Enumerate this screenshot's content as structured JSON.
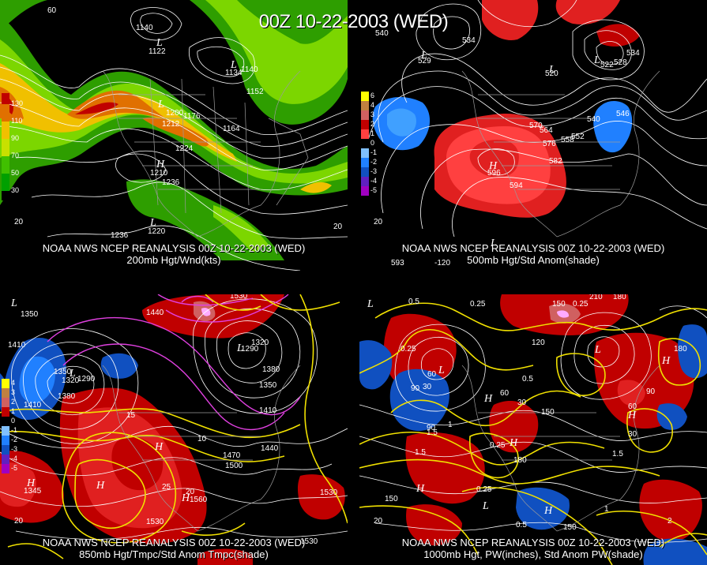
{
  "title": "00Z 10-22-2003 (WED)",
  "panels": [
    {
      "caption1": "NOAA NWS NCEP REANALYSIS 00Z 10-22-2003 (WED)",
      "caption2": "200mb Hgt/Wnd(kts)",
      "legend": [
        "130",
        "110",
        "90",
        "70",
        "50",
        "30"
      ],
      "legend_colors": [
        "#c00000",
        "#e07000",
        "#f0c000",
        "#c8e000",
        "#40c000",
        "#00a000"
      ],
      "contour_labels": [
        "1140",
        "1152",
        "1164",
        "1200",
        "1212",
        "1176",
        "1224",
        "1236",
        "1236",
        "1140",
        "1122",
        "1134",
        "1210",
        "1220"
      ],
      "hl": [
        "L",
        "L",
        "H",
        "L",
        "L"
      ],
      "lat_lon": [
        "60",
        "20",
        "20"
      ]
    },
    {
      "caption1": "NOAA NWS NCEP REANALYSIS 00Z 10-22-2003 (WED)",
      "caption2": "500mb Hgt/Std Anom(shade)",
      "legend": [
        "6",
        "4",
        "3",
        "2",
        "1",
        "0",
        "-1",
        "-2",
        "-3",
        "-4",
        "-5"
      ],
      "legend_colors": [
        "#ffff00",
        "#c08040",
        "#d06060",
        "#c00000",
        "#ff4040",
        "#000000",
        "#80c0ff",
        "#2080ff",
        "#1050c0",
        "#6020c0",
        "#a000c0"
      ],
      "contour_labels": [
        "534",
        "540",
        "528",
        "522",
        "534",
        "546",
        "540",
        "570",
        "564",
        "576",
        "558",
        "552",
        "582",
        "594",
        "529",
        "520",
        "596",
        "593"
      ],
      "hl": [
        "L",
        "L",
        "L",
        "H",
        "L"
      ],
      "lat_lon": [
        "20",
        "-120"
      ]
    },
    {
      "caption1": "NOAA NWS NCEP REANALYSIS 00Z 10-22-2003 (WED)",
      "caption2": "850mb Hgt/Tmpc/Std Anom Tmpc(shade)",
      "legend": [
        "4",
        "3",
        "2",
        "1",
        "0",
        "-1",
        "-2",
        "-3",
        "-4",
        "-5"
      ],
      "legend_colors": [
        "#ffff00",
        "#c08040",
        "#d06060",
        "#c00000",
        "#000000",
        "#80c0ff",
        "#2080ff",
        "#1050c0",
        "#6020c0",
        "#a000c0"
      ],
      "contour_labels": [
        "1530",
        "1440",
        "1350",
        "1410",
        "1350",
        "1320",
        "1290",
        "1380",
        "1410",
        "1290",
        "1320",
        "1380",
        "1350",
        "1410",
        "1470",
        "1500",
        "1440",
        "1530",
        "1560",
        "1530",
        "1530",
        "15",
        "10",
        "20",
        "25",
        "1345"
      ],
      "hl": [
        "L",
        "L",
        "L",
        "H",
        "H",
        "H",
        "H"
      ],
      "lat_lon": [
        "20"
      ]
    },
    {
      "caption1": "NOAA NWS NCEP REANALYSIS 00Z 10-22-2003 (WED)",
      "caption2": "1000mb Hgt, PW(inches), Std Anom PW(shade)",
      "legend": [],
      "legend_colors": [],
      "contour_labels": [
        "210",
        "180",
        "150",
        "0.25",
        "0.25",
        "0.5",
        "0.25",
        "1.5",
        "1.5",
        "1",
        "0.25",
        "0.5",
        "90",
        "60",
        "30",
        "120",
        "150",
        "180",
        "90",
        "60",
        "30",
        "180",
        "150",
        "150",
        "0.5",
        "1",
        "0.25",
        "2",
        "1.5",
        "30",
        "60",
        "90"
      ],
      "hl": [
        "L",
        "L",
        "L",
        "H",
        "H",
        "H",
        "H",
        "L",
        "H",
        "H"
      ],
      "lat_lon": [
        "20"
      ]
    }
  ]
}
